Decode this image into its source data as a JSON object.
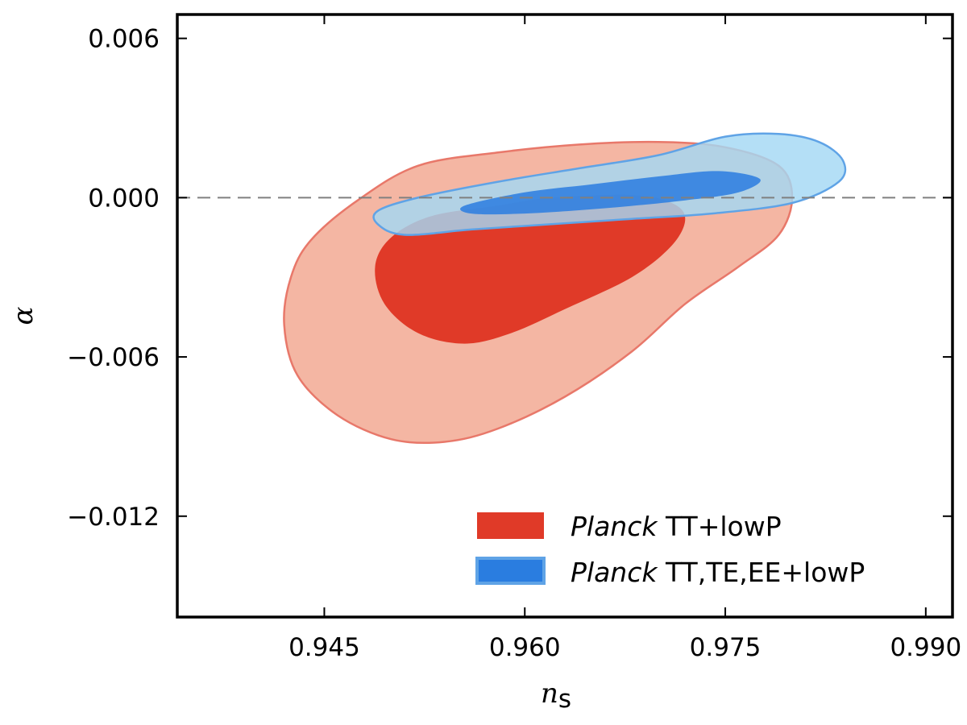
{
  "chart_data": {
    "type": "contour",
    "title": "",
    "xlabel": "n",
    "xlabel_subscript": "s",
    "ylabel": "α",
    "xlim": [
      0.934,
      0.992
    ],
    "ylim": [
      -0.0158,
      0.0069
    ],
    "x_ticks": [
      0.945,
      0.96,
      0.975,
      0.99
    ],
    "x_tick_labels": [
      "0.945",
      "0.960",
      "0.975",
      "0.990"
    ],
    "y_ticks": [
      0.006,
      0.0,
      -0.006,
      -0.012
    ],
    "y_tick_labels": [
      "0.006",
      "0.000",
      "−0.006",
      "−0.012"
    ],
    "reference_line": {
      "axis": "y",
      "value": 0.0,
      "style": "dashed",
      "color": "#808080"
    },
    "legend_position": "bottom-right",
    "series": [
      {
        "name": "Planck TT+lowP",
        "legend_italic": "Planck",
        "legend_rest": "TT+lowP",
        "color_inner": "#e03a28",
        "color_outer": "#f4b6a3",
        "edge_outer": "#e8786a",
        "contours": {
          "outer_95": [
            [
              0.9475,
              -0.0001
            ],
            [
              0.952,
              0.0012
            ],
            [
              0.958,
              0.0017
            ],
            [
              0.964,
              0.002
            ],
            [
              0.97,
              0.0021
            ],
            [
              0.975,
              0.0019
            ],
            [
              0.979,
              0.0012
            ],
            [
              0.98,
              0.0
            ],
            [
              0.979,
              -0.0014
            ],
            [
              0.976,
              -0.0026
            ],
            [
              0.972,
              -0.004
            ],
            [
              0.968,
              -0.0058
            ],
            [
              0.963,
              -0.0075
            ],
            [
              0.958,
              -0.0087
            ],
            [
              0.954,
              -0.0092
            ],
            [
              0.95,
              -0.0091
            ],
            [
              0.946,
              -0.0082
            ],
            [
              0.943,
              -0.0067
            ],
            [
              0.942,
              -0.0048
            ],
            [
              0.9425,
              -0.003
            ],
            [
              0.944,
              -0.0016
            ],
            [
              0.9475,
              -0.0001
            ]
          ],
          "inner_68": [
            [
              0.95,
              -0.0015
            ],
            [
              0.953,
              -0.0007
            ],
            [
              0.958,
              -0.0003
            ],
            [
              0.962,
              0.0
            ],
            [
              0.968,
              0.0001
            ],
            [
              0.971,
              -0.0002
            ],
            [
              0.972,
              -0.0008
            ],
            [
              0.971,
              -0.0018
            ],
            [
              0.968,
              -0.003
            ],
            [
              0.963,
              -0.0042
            ],
            [
              0.959,
              -0.0051
            ],
            [
              0.9555,
              -0.0055
            ],
            [
              0.952,
              -0.0051
            ],
            [
              0.9495,
              -0.004
            ],
            [
              0.9488,
              -0.0026
            ],
            [
              0.95,
              -0.0015
            ]
          ]
        }
      },
      {
        "name": "Planck TT,TE,EE+lowP",
        "legend_italic": "Planck",
        "legend_rest": "TT,TE,EE+lowP",
        "color_inner": "#2a7de0",
        "color_outer": "#a3d8f4",
        "edge_outer": "#5fa3e6",
        "contours": {
          "outer_95": [
            [
              0.949,
              -0.0005
            ],
            [
              0.952,
              0.0
            ],
            [
              0.958,
              0.0006
            ],
            [
              0.964,
              0.0011
            ],
            [
              0.97,
              0.0016
            ],
            [
              0.975,
              0.0023
            ],
            [
              0.979,
              0.0024
            ],
            [
              0.982,
              0.0021
            ],
            [
              0.9838,
              0.0014
            ],
            [
              0.9835,
              0.0006
            ],
            [
              0.98,
              -0.0002
            ],
            [
              0.974,
              -0.0006
            ],
            [
              0.968,
              -0.0008
            ],
            [
              0.962,
              -0.001
            ],
            [
              0.956,
              -0.0012
            ],
            [
              0.951,
              -0.0014
            ],
            [
              0.949,
              -0.001
            ],
            [
              0.949,
              -0.0005
            ]
          ],
          "inner_68": [
            [
              0.9555,
              -0.0003
            ],
            [
              0.96,
              0.0002
            ],
            [
              0.965,
              0.0005
            ],
            [
              0.97,
              0.0008
            ],
            [
              0.9745,
              0.001
            ],
            [
              0.9776,
              0.0007
            ],
            [
              0.976,
              0.0002
            ],
            [
              0.972,
              -0.0001
            ],
            [
              0.966,
              -0.0004
            ],
            [
              0.96,
              -0.0006
            ],
            [
              0.956,
              -0.0006
            ],
            [
              0.9555,
              -0.0003
            ]
          ]
        }
      }
    ]
  }
}
